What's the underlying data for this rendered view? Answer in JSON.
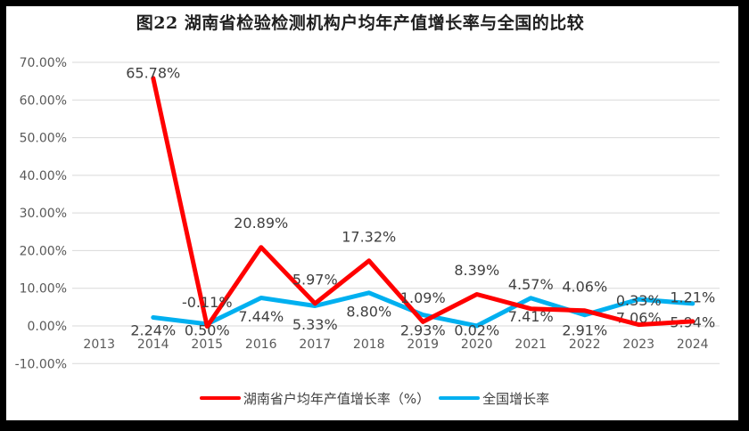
{
  "chart_data": {
    "type": "line",
    "title": "图22 湖南省检验检测机构户均年产值增长率与全国的比较",
    "categories": [
      "2013",
      "2014",
      "2015",
      "2016",
      "2017",
      "2018",
      "2019",
      "2020",
      "2021",
      "2022",
      "2023",
      "2024"
    ],
    "series": [
      {
        "name": "湖南省户均年产值增长率（%）",
        "color": "#FF0000",
        "label_placement": "above",
        "values": [
          null,
          65.78,
          -0.11,
          20.89,
          5.97,
          17.32,
          1.09,
          8.39,
          4.57,
          4.06,
          0.33,
          1.21
        ],
        "data_labels": [
          "",
          "65.78%",
          "-0.11%",
          "20.89%",
          "5.97%",
          "17.32%",
          "1.09%",
          "8.39%",
          "4.57%",
          "4.06%",
          "0.33%",
          "1.21%"
        ]
      },
      {
        "name": "全国增长率",
        "color": "#00B0F0",
        "label_placement": "below",
        "values": [
          null,
          2.24,
          0.5,
          7.44,
          5.33,
          8.8,
          2.93,
          0.02,
          7.41,
          2.91,
          7.06,
          5.94
        ],
        "data_labels": [
          "",
          "2.24%",
          "0.50%",
          "7.44%",
          "5.33%",
          "8.80%",
          "2.93%",
          "0.02%",
          "7.41%",
          "2.91%",
          "7.06%",
          "5.94%"
        ]
      }
    ],
    "y_axis": {
      "min": -10,
      "max": 70,
      "step": 10,
      "tick_values": [
        70,
        60,
        50,
        40,
        30,
        20,
        10,
        0,
        -10
      ],
      "tick_labels": [
        "70.00%",
        "60.00%",
        "50.00%",
        "40.00%",
        "30.00%",
        "20.00%",
        "10.00%",
        "0.00%",
        "-10.00%"
      ]
    },
    "grid": true,
    "legend_position": "bottom",
    "colors": {
      "background": "#FFFFFF",
      "frame_border": "#000000",
      "gridline": "#D9D9D9",
      "axis_text": "#595959",
      "data_label_text": "#404040",
      "title_text": "#1F1F1F"
    }
  }
}
